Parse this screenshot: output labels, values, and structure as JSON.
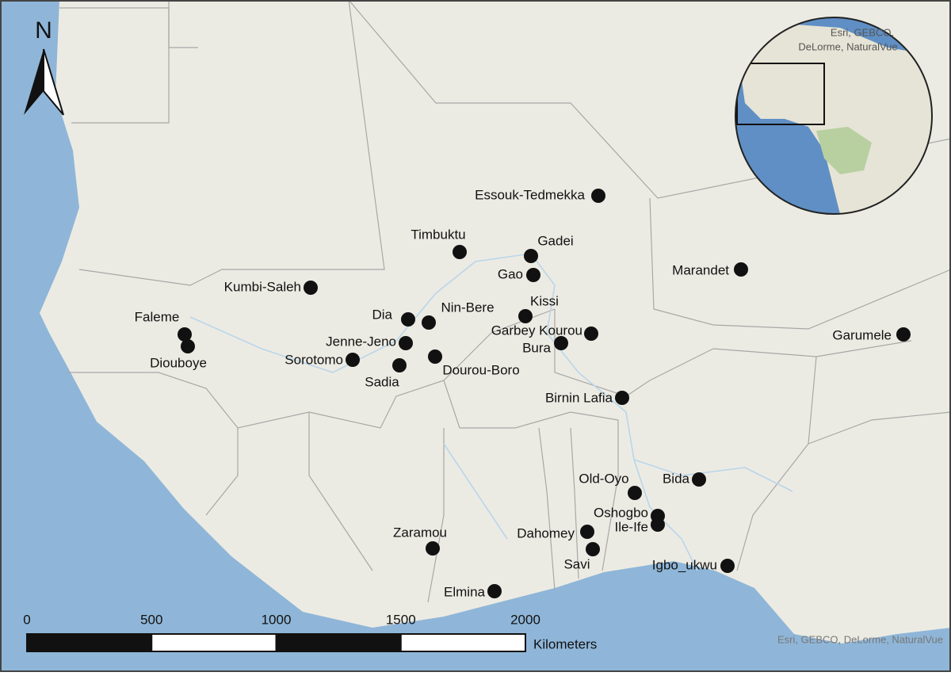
{
  "north_label": "N",
  "sites": [
    "Essouk-Tedmekka",
    "Timbuktu",
    "Gadei",
    "Gao",
    "Marandet",
    "Kumbi-Saleh",
    "Kissi",
    "Dia",
    "Nin-Bere",
    "Faleme",
    "Diouboye",
    "Garbey Kourou",
    "Jenne-Jeno",
    "Bura",
    "Garumele",
    "Sorotomo",
    "Dourou-Boro",
    "Sadia",
    "Birnin Lafia",
    "Old-Oyo",
    "Bida",
    "Oshogbo",
    "Ile-Ife",
    "Dahomey",
    "Zaramou",
    "Savi",
    "Igbo_ukwu",
    "Elmina"
  ],
  "scale_bar": {
    "ticks": [
      0,
      500,
      1000,
      1500,
      2000
    ],
    "unit": "Kilometers"
  },
  "attribution": "Esri, GEBCO, DeLorme, NaturalVue",
  "inset_attribution": [
    "Esri, GEBCO,",
    "DeLorme, NaturalVue"
  ]
}
